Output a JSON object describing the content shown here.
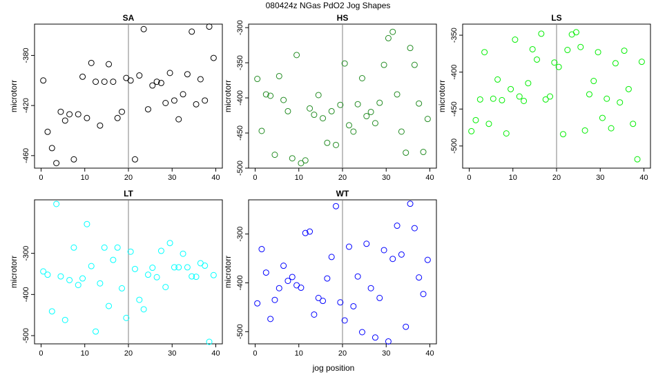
{
  "figure": {
    "title": "080424z   NGas PdO2 Jog Shapes",
    "xlabel": "jog position"
  },
  "chart_data": [
    {
      "type": "scatter",
      "title": "SA",
      "ylabel": "microtorr",
      "color": "#000000",
      "xlim": [
        -1.5,
        41.5
      ],
      "ylim": [
        -470,
        -355
      ],
      "xticks": [
        0,
        10,
        20,
        30,
        40
      ],
      "yticks": [
        -380,
        -420,
        -460
      ],
      "vline": 20,
      "x": [
        0.5,
        1.5,
        2.5,
        3.5,
        4.5,
        5.5,
        6.5,
        7.5,
        8.5,
        9.5,
        10.5,
        11.5,
        12.5,
        13.5,
        14.5,
        15.5,
        16.5,
        17.5,
        18.5,
        19.5,
        20.5,
        21.5,
        22.5,
        23.5,
        24.5,
        25.5,
        26.5,
        27.5,
        28.5,
        29.5,
        30.5,
        31.5,
        32.5,
        33.5,
        34.5,
        35.5,
        36.5,
        37.5,
        38.5,
        39.5
      ],
      "y": [
        -400,
        -441,
        -454,
        -466,
        -425,
        -432,
        -427,
        -463,
        -427,
        -397,
        -430,
        -386,
        -401,
        -436,
        -401,
        -387,
        -401,
        -430,
        -425,
        -398,
        -400,
        -463,
        -396,
        -359,
        -423,
        -404,
        -401,
        -402,
        -418,
        -394,
        -416,
        -431,
        -411,
        -395,
        -361,
        -419,
        -399,
        -416,
        -357,
        -382
      ]
    },
    {
      "type": "scatter",
      "title": "HS",
      "ylabel": "microtorr",
      "color": "#228b22",
      "xlim": [
        -1.5,
        41.5
      ],
      "ylim": [
        -500,
        -295
      ],
      "xticks": [
        0,
        10,
        20,
        30,
        40
      ],
      "yticks": [
        -300,
        -350,
        -400,
        -450,
        -500
      ],
      "vline": 20,
      "x": [
        0.5,
        1.5,
        2.5,
        3.5,
        4.5,
        5.5,
        6.5,
        7.5,
        8.5,
        9.5,
        10.5,
        11.5,
        12.5,
        13.5,
        14.5,
        15.5,
        16.5,
        17.5,
        18.5,
        19.5,
        20.5,
        21.5,
        22.5,
        23.5,
        24.5,
        25.5,
        26.5,
        27.5,
        28.5,
        29.5,
        30.5,
        31.5,
        32.5,
        33.5,
        34.5,
        35.5,
        36.5,
        37.5,
        38.5,
        39.5
      ],
      "y": [
        -373,
        -447,
        -395,
        -397,
        -481,
        -369,
        -403,
        -419,
        -486,
        -339,
        -493,
        -489,
        -415,
        -424,
        -396,
        -429,
        -464,
        -419,
        -467,
        -410,
        -351,
        -439,
        -448,
        -409,
        -372,
        -426,
        -420,
        -436,
        -407,
        -353,
        -315,
        -306,
        -395,
        -448,
        -478,
        -329,
        -353,
        -408,
        -477,
        -430
      ]
    },
    {
      "type": "scatter",
      "title": "LS",
      "ylabel": "microtorr",
      "color": "#00ee00",
      "xlim": [
        -1.5,
        41.5
      ],
      "ylim": [
        -530,
        -335
      ],
      "xticks": [
        0,
        10,
        20,
        30,
        40
      ],
      "yticks": [
        -350,
        -400,
        -450,
        -500
      ],
      "vline": 20,
      "x": [
        0.5,
        1.5,
        2.5,
        3.5,
        4.5,
        5.5,
        6.5,
        7.5,
        8.5,
        9.5,
        10.5,
        11.5,
        12.5,
        13.5,
        14.5,
        15.5,
        16.5,
        17.5,
        18.5,
        19.5,
        20.5,
        21.5,
        22.5,
        23.5,
        24.5,
        25.5,
        26.5,
        27.5,
        28.5,
        29.5,
        30.5,
        31.5,
        32.5,
        33.5,
        34.5,
        35.5,
        36.5,
        37.5,
        38.5,
        39.5
      ],
      "y": [
        -480,
        -465,
        -437,
        -373,
        -470,
        -436,
        -410,
        -438,
        -483,
        -423,
        -356,
        -433,
        -439,
        -415,
        -369,
        -383,
        -348,
        -437,
        -433,
        -387,
        -393,
        -484,
        -370,
        -349,
        -346,
        -366,
        -479,
        -430,
        -412,
        -373,
        -462,
        -436,
        -476,
        -388,
        -441,
        -371,
        -423,
        -470,
        -518,
        -386
      ]
    },
    {
      "type": "scatter",
      "title": "LT",
      "ylabel": "microtorr",
      "color": "#00ffff",
      "xlim": [
        -1.5,
        41.5
      ],
      "ylim": [
        -520,
        -170
      ],
      "xticks": [
        0,
        10,
        20,
        30,
        40
      ],
      "yticks": [
        -300,
        -400,
        -500
      ],
      "vline": 20,
      "x": [
        0.5,
        1.5,
        2.5,
        3.5,
        4.5,
        5.5,
        6.5,
        7.5,
        8.5,
        9.5,
        10.5,
        11.5,
        12.5,
        13.5,
        14.5,
        15.5,
        16.5,
        17.5,
        18.5,
        19.5,
        20.5,
        21.5,
        22.5,
        23.5,
        24.5,
        25.5,
        26.5,
        27.5,
        28.5,
        29.5,
        30.5,
        31.5,
        32.5,
        33.5,
        34.5,
        35.5,
        36.5,
        37.5,
        38.5,
        39.5
      ],
      "y": [
        -344,
        -352,
        -441,
        -180,
        -356,
        -462,
        -365,
        -286,
        -377,
        -361,
        -229,
        -331,
        -490,
        -373,
        -286,
        -428,
        -316,
        -286,
        -385,
        -457,
        -296,
        -338,
        -413,
        -436,
        -352,
        -335,
        -358,
        -294,
        -382,
        -275,
        -334,
        -334,
        -301,
        -334,
        -356,
        -357,
        -324,
        -330,
        -515,
        -353
      ]
    },
    {
      "type": "scatter",
      "title": "WT",
      "ylabel": "microtorr",
      "color": "#0000ff",
      "xlim": [
        -1.5,
        41.5
      ],
      "ylim": [
        -525,
        -230
      ],
      "xticks": [
        0,
        10,
        20,
        30,
        40
      ],
      "yticks": [
        -300,
        -400,
        -500
      ],
      "vline": 20,
      "x": [
        0.5,
        1.5,
        2.5,
        3.5,
        4.5,
        5.5,
        6.5,
        7.5,
        8.5,
        9.5,
        10.5,
        11.5,
        12.5,
        13.5,
        14.5,
        15.5,
        16.5,
        17.5,
        18.5,
        19.5,
        20.5,
        21.5,
        22.5,
        23.5,
        24.5,
        25.5,
        26.5,
        27.5,
        28.5,
        29.5,
        30.5,
        31.5,
        32.5,
        33.5,
        34.5,
        35.5,
        36.5,
        37.5,
        38.5,
        39.5
      ],
      "y": [
        -442,
        -331,
        -379,
        -474,
        -435,
        -411,
        -365,
        -396,
        -388,
        -405,
        -410,
        -298,
        -295,
        -465,
        -431,
        -437,
        -391,
        -347,
        -243,
        -440,
        -477,
        -326,
        -448,
        -387,
        -501,
        -320,
        -411,
        -512,
        -431,
        -333,
        -520,
        -351,
        -283,
        -342,
        -490,
        -238,
        -288,
        -389,
        -423,
        -353
      ]
    }
  ]
}
